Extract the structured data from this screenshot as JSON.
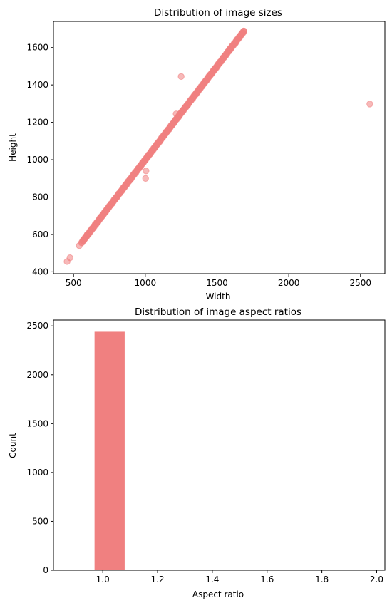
{
  "chart_data": [
    {
      "type": "scatter",
      "title": "Distribution of image sizes",
      "xlabel": "Width",
      "ylabel": "Height",
      "xlim": [
        360,
        2670
      ],
      "ylim": [
        390,
        1740
      ],
      "xticks": [
        500,
        1000,
        1500,
        2000,
        2500
      ],
      "yticks": [
        400,
        600,
        800,
        1000,
        1200,
        1400,
        1600
      ],
      "grid": false,
      "color": "#f08080",
      "diagonal_range": [
        560,
        1690
      ],
      "points": [
        {
          "x": 455,
          "y": 455
        },
        {
          "x": 475,
          "y": 475
        },
        {
          "x": 540,
          "y": 540
        },
        {
          "x": 555,
          "y": 555
        },
        {
          "x": 575,
          "y": 575
        },
        {
          "x": 595,
          "y": 600
        },
        {
          "x": 1002,
          "y": 900
        },
        {
          "x": 1005,
          "y": 940
        },
        {
          "x": 1250,
          "y": 1445
        },
        {
          "x": 1215,
          "y": 1245
        },
        {
          "x": 1590,
          "y": 1595
        },
        {
          "x": 1630,
          "y": 1625
        },
        {
          "x": 1665,
          "y": 1665
        },
        {
          "x": 1685,
          "y": 1685
        },
        {
          "x": 2565,
          "y": 1298
        }
      ]
    },
    {
      "type": "bar",
      "title": "Distribution of image aspect ratios",
      "xlabel": "Aspect ratio",
      "ylabel": "Count",
      "xlim": [
        0.82,
        2.03
      ],
      "ylim": [
        0,
        2560
      ],
      "xticks": [
        "1.0",
        "1.2",
        "1.4",
        "1.6",
        "1.8",
        "2.0"
      ],
      "yticks": [
        "0",
        "500",
        "1000",
        "1500",
        "2000",
        "2500"
      ],
      "grid": false,
      "color": "#f08080",
      "bins": [
        {
          "x0": 0.97,
          "x1": 1.08,
          "count": 2440
        }
      ]
    }
  ]
}
